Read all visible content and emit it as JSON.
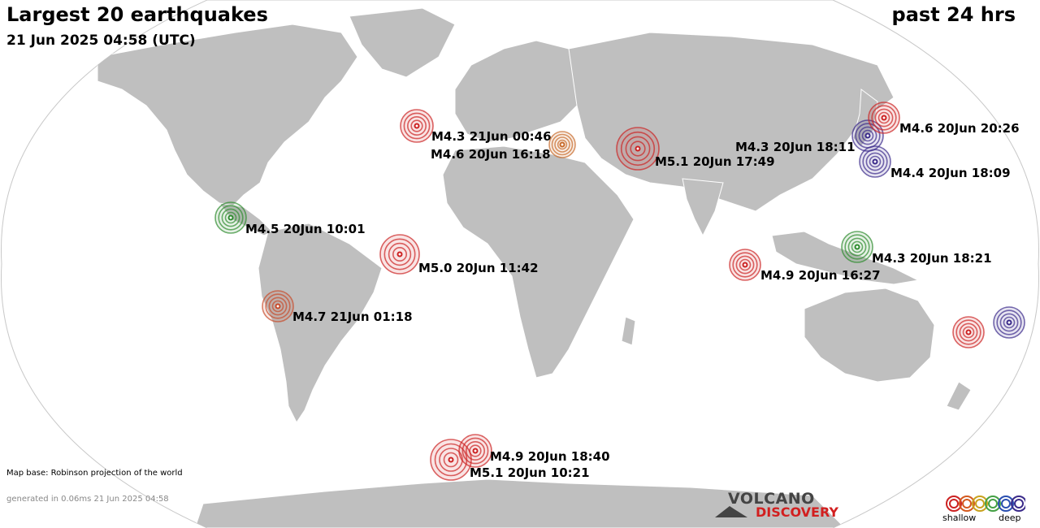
{
  "header": {
    "title": "Largest 20 earthquakes",
    "timestamp": "21 Jun 2025 04:58 (UTC)",
    "period": "past 24 hrs"
  },
  "footer": {
    "map_base": "Map base: Robinson projection of the world",
    "generated": "generated in 0.06ms 21 Jun 2025 04:58"
  },
  "logo": {
    "line1": "VOLCANO",
    "line2": "DISCOVERY"
  },
  "legend": {
    "shallow_label": "shallow",
    "deep_label": "deep",
    "depth_colors": [
      "#cc2222",
      "#d45a1f",
      "#c9a21e",
      "#44a044",
      "#2a4fb0",
      "#3a2a8a"
    ]
  },
  "colors": {
    "land": "#bfbfbf",
    "ocean": "#ffffff",
    "border": "#ffffff"
  },
  "earthquakes": [
    {
      "label": "M4.3 21Jun 00:46",
      "depth_color": "#cc2222"
    },
    {
      "label": "M4.6 20Jun 16:18",
      "depth_color": "#c86a2a"
    },
    {
      "label": "M5.1 20Jun 17:49",
      "depth_color": "#cc2222"
    },
    {
      "label": "M4.3 20Jun 18:11",
      "depth_color": "#3a2a8a"
    },
    {
      "label": "M4.6 20Jun 20:26",
      "depth_color": "#cc2222"
    },
    {
      "label": "M4.4 20Jun 18:09",
      "depth_color": "#3a2a8a"
    },
    {
      "label": "M4.5 20Jun 10:01",
      "depth_color": "#2e8b2e"
    },
    {
      "label": "M5.0 20Jun 11:42",
      "depth_color": "#cc2222"
    },
    {
      "label": "M4.3 20Jun 18:21",
      "depth_color": "#2e8b2e"
    },
    {
      "label": "M4.9 20Jun 16:27",
      "depth_color": "#cc2222"
    },
    {
      "label": "M4.7 21Jun 01:18",
      "depth_color": "#c84a2a"
    },
    {
      "label": "M4.9 20Jun 18:40",
      "depth_color": "#cc2222"
    },
    {
      "label": "M5.1 20Jun 10:21",
      "depth_color": "#cc2222"
    },
    {
      "label": "",
      "depth_color": "#cc2222"
    },
    {
      "label": "",
      "depth_color": "#3a2a8a"
    }
  ]
}
